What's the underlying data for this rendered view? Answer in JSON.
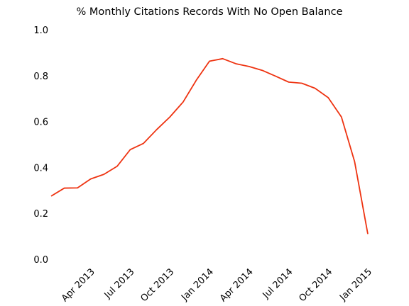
{
  "chart_data": {
    "type": "line",
    "title": "% Monthly Citations Records With No Open Balance",
    "xlabel": "",
    "ylabel": "",
    "x_tick_labels": [
      "Apr 2013",
      "Jul 2013",
      "Oct 2013",
      "Jan 2014",
      "Apr 2014",
      "Jul 2014",
      "Oct 2014",
      "Jan 2015"
    ],
    "y_tick_labels": [
      "0.0",
      "0.2",
      "0.4",
      "0.6",
      "0.8",
      "1.0"
    ],
    "ylim": [
      0.0,
      1.0
    ],
    "xlim": [
      "2013-01",
      "2015-01"
    ],
    "grid": false,
    "line_color": "#ee3311",
    "series": [
      {
        "x": [
          "2013-01",
          "2013-02",
          "2013-03",
          "2013-04",
          "2013-05",
          "2013-06",
          "2013-07",
          "2013-08",
          "2013-09",
          "2013-10",
          "2013-11",
          "2013-12",
          "2014-01",
          "2014-02",
          "2014-03",
          "2014-04",
          "2014-05",
          "2014-06",
          "2014-07",
          "2014-08",
          "2014-09",
          "2014-10",
          "2014-11",
          "2014-12",
          "2015-01"
        ],
        "values": [
          0.275,
          0.31,
          0.311,
          0.35,
          0.37,
          0.405,
          0.478,
          0.505,
          0.565,
          0.62,
          0.685,
          0.78,
          0.863,
          0.874,
          0.852,
          0.84,
          0.823,
          0.798,
          0.772,
          0.767,
          0.745,
          0.704,
          0.62,
          0.425,
          0.11
        ]
      }
    ]
  }
}
